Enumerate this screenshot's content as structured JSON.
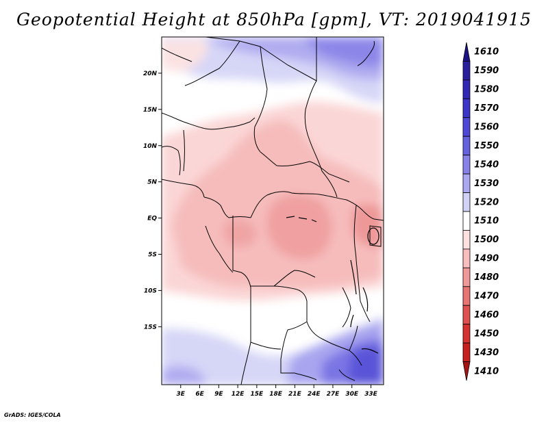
{
  "title": "Geopotential Height at 850hPa [gpm], VT: 2019041915",
  "footer": "GrADS: IGES/COLA",
  "chart_data": {
    "type": "heatmap",
    "variable": "Geopotential Height at 850hPa",
    "units": "gpm",
    "valid_time": "2019041915",
    "lon_range": [
      0,
      35
    ],
    "lat_range": [
      -23,
      25
    ],
    "x_ticks": [
      "3E",
      "6E",
      "9E",
      "12E",
      "15E",
      "18E",
      "21E",
      "24E",
      "27E",
      "30E",
      "33E"
    ],
    "x_tick_values": [
      3,
      6,
      9,
      12,
      15,
      18,
      21,
      24,
      27,
      30,
      33
    ],
    "y_ticks": [
      "20N",
      "15N",
      "10N",
      "5N",
      "EQ",
      "5S",
      "10S",
      "15S"
    ],
    "y_tick_values": [
      20,
      15,
      10,
      5,
      0,
      -5,
      -10,
      -15
    ],
    "colorbar_levels": [
      "1610",
      "1590",
      "1580",
      "1570",
      "1560",
      "1550",
      "1540",
      "1530",
      "1520",
      "1510",
      "1500",
      "1490",
      "1480",
      "1470",
      "1460",
      "1450",
      "1430",
      "1410"
    ],
    "colorbar_colors": [
      "#1c1283",
      "#2a1e9e",
      "#3328b6",
      "#3d34c8",
      "#4f48d6",
      "#6661df",
      "#8781e8",
      "#aba7f0",
      "#d2d2f7",
      "#ffffff",
      "#fde0e0",
      "#f8bdbd",
      "#ef9a9a",
      "#e87474",
      "#df5050",
      "#d63232",
      "#c81f1f",
      "#a51313"
    ]
  }
}
